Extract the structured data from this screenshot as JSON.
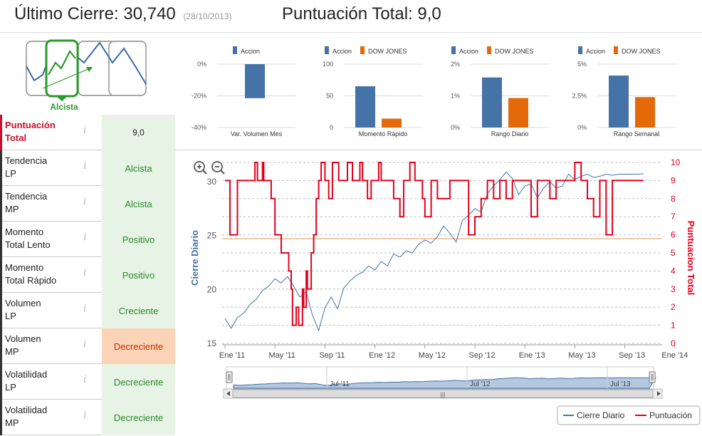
{
  "header": {
    "last_close_label": "Último Cierre:",
    "last_close_value": "30,740",
    "last_close_date": "(28/10/2013)",
    "total_score_label": "Puntuación Total:",
    "total_score_value": "9,0"
  },
  "trend": {
    "label": "Alcista"
  },
  "rows": [
    {
      "label1": "Puntuación",
      "label2": "Total",
      "value": "9,0"
    },
    {
      "label1": "Tendencia",
      "label2": "LP",
      "value": "Alcista"
    },
    {
      "label1": "Tendencia",
      "label2": "MP",
      "value": "Alcista"
    },
    {
      "label1": "Momento",
      "label2": "Total Lento",
      "value": "Positivo"
    },
    {
      "label1": "Momento",
      "label2": "Total Rápido",
      "value": "Positivo"
    },
    {
      "label1": "Volumen",
      "label2": "LP",
      "value": "Creciente"
    },
    {
      "label1": "Volumen",
      "label2": "MP",
      "value": "Decreciente"
    },
    {
      "label1": "Volatilidad",
      "label2": "LP",
      "value": "Decreciente"
    },
    {
      "label1": "Volatilidad",
      "label2": "MP",
      "value": "Decreciente"
    }
  ],
  "info_glyph": "i",
  "colors": {
    "accion": "#4572a7",
    "dow": "#e3690a",
    "score": "#e3001b",
    "green": "#2a9a2a",
    "ref_line": "#f0b890"
  },
  "chart_data": [
    {
      "type": "bar",
      "title": "",
      "categories": [
        "Var. Volumen Mes"
      ],
      "series": [
        {
          "name": "Accion",
          "values": [
            -21.5
          ]
        }
      ],
      "yticks": [
        "0%",
        "-20%",
        "-40%"
      ],
      "ylim": [
        -40,
        0
      ]
    },
    {
      "type": "bar",
      "title": "",
      "categories": [
        "Momento Rápido"
      ],
      "series": [
        {
          "name": "Accion",
          "values": [
            65
          ]
        },
        {
          "name": "DOW JONES",
          "values": [
            14
          ]
        }
      ],
      "yticks": [
        "100",
        "50",
        "0"
      ],
      "ylim": [
        0,
        100
      ]
    },
    {
      "type": "bar",
      "title": "",
      "categories": [
        "Rango Diario"
      ],
      "series": [
        {
          "name": "Accion",
          "values": [
            1.58
          ]
        },
        {
          "name": "DOW JONES",
          "values": [
            0.93
          ]
        }
      ],
      "yticks": [
        "2%",
        "1%",
        "0%"
      ],
      "ylim": [
        0,
        2
      ]
    },
    {
      "type": "bar",
      "title": "",
      "categories": [
        "Rango Semanal"
      ],
      "series": [
        {
          "name": "Accion",
          "values": [
            4.1
          ]
        },
        {
          "name": "DOW JONES",
          "values": [
            2.4
          ]
        }
      ],
      "yticks": [
        "5%",
        "2.5%",
        "0%"
      ],
      "ylim": [
        0,
        5
      ]
    },
    {
      "type": "line",
      "ylabel_left": "Cierre Diario",
      "ylabel_right": "Puntuacion Total",
      "yticks_left": [
        "15",
        "20",
        "25",
        "30"
      ],
      "yticks_right": [
        "0",
        "1",
        "2",
        "3",
        "4",
        "5",
        "6",
        "7",
        "8",
        "9",
        "10"
      ],
      "xticks": [
        "Ene '11",
        "May '11",
        "Sep '11",
        "Ene '12",
        "May '12",
        "Sep '12",
        "Ene '13",
        "May '13",
        "Sep '13",
        "Ene '14"
      ],
      "navigator_ticks": [
        "Jul '11",
        "Jul '12",
        "Jul '13"
      ],
      "reference_level": 5,
      "legend": [
        "Cierre Diario",
        "Puntuación"
      ],
      "series": [
        {
          "name": "Cierre Diario",
          "x_months": [
            0,
            0.5,
            1,
            1.5,
            2,
            2.5,
            3,
            3.5,
            4,
            4.5,
            5,
            5.5,
            6,
            6.5,
            7,
            7.5,
            8,
            8.5,
            9,
            9.5,
            10,
            10.5,
            11,
            11.5,
            12,
            12.5,
            13,
            13.5,
            14,
            14.5,
            15,
            15.5,
            16,
            16.5,
            17,
            17.5,
            18,
            18.5,
            19,
            19.5,
            20,
            20.5,
            21,
            21.5,
            22,
            22.5,
            23,
            23.5,
            24,
            24.5,
            25,
            25.5,
            26,
            26.5,
            27,
            27.5,
            28,
            28.5,
            29,
            29.5,
            30,
            30.5,
            31,
            31.5,
            32,
            32.5,
            33,
            33.5
          ],
          "values": [
            17.3,
            16.4,
            17.4,
            17.8,
            18.6,
            19.1,
            19.9,
            20.3,
            21.0,
            20.6,
            21.2,
            20.3,
            19.3,
            19.8,
            17.6,
            16.2,
            18.3,
            19.3,
            18.2,
            20.1,
            20.8,
            21.3,
            21.6,
            22.2,
            21.8,
            22.6,
            22.2,
            23.3,
            23.0,
            23.6,
            23.4,
            24.2,
            24.6,
            24.3,
            24.9,
            25.9,
            25.2,
            24.4,
            26.4,
            26.9,
            27.5,
            27.2,
            28.9,
            29.6,
            30.2,
            30.9,
            30.3,
            28.8,
            29.6,
            29.8,
            28.5,
            29.4,
            30.0,
            29.4,
            29.6,
            30.7,
            30.2,
            30.5,
            30.7,
            30.4,
            30.5,
            30.7,
            30.6,
            30.7,
            30.7,
            30.7,
            30.7,
            30.74
          ]
        },
        {
          "name": "Puntuación",
          "x_months": [
            0,
            0.4,
            1.0,
            1.2,
            2.4,
            2.6,
            3.0,
            3.1,
            3.7,
            4.0,
            4.3,
            4.5,
            5.1,
            5.3,
            5.4,
            5.7,
            5.9,
            6.2,
            6.3,
            6.5,
            6.6,
            6.9,
            7.1,
            7.3,
            7.5,
            7.7,
            8.0,
            8.3,
            8.6,
            9.1,
            9.4,
            9.8,
            10.2,
            10.3,
            10.8,
            11.0,
            11.4,
            11.7,
            12.3,
            12.5,
            13.0,
            13.5,
            14.0,
            14.3,
            14.8,
            15.2,
            15.5,
            15.8,
            16.0,
            16.5,
            17.0,
            17.5,
            18.0,
            18.5,
            19.0,
            19.5,
            20.0,
            20.5,
            21.0,
            21.5,
            22.0,
            22.5,
            23.0,
            23.5,
            24.0,
            24.5,
            25.0,
            25.5,
            26.0,
            26.5,
            27.0,
            27.5,
            28.0,
            28.5,
            29.0,
            29.5,
            30.0,
            30.5,
            31.0,
            31.5,
            32.0,
            32.5,
            33.0,
            33.5
          ],
          "values": [
            9,
            6,
            9,
            9,
            10,
            9,
            10,
            9,
            8,
            6,
            6,
            5,
            4,
            3,
            1,
            2,
            1,
            3,
            2,
            4,
            3,
            5,
            6,
            8,
            9,
            10,
            9,
            8,
            10,
            9,
            9,
            10,
            9,
            9,
            10,
            9,
            8,
            9,
            10,
            9,
            9,
            8,
            7,
            9,
            10,
            9,
            9,
            8,
            7,
            9,
            8,
            8,
            9,
            9,
            9,
            6,
            7,
            8,
            9,
            8,
            9,
            8,
            9,
            9,
            9,
            7,
            9,
            9,
            8,
            9,
            9,
            9,
            10,
            9,
            8,
            7,
            9,
            6,
            9,
            9,
            9,
            9,
            9,
            9
          ]
        }
      ]
    }
  ]
}
